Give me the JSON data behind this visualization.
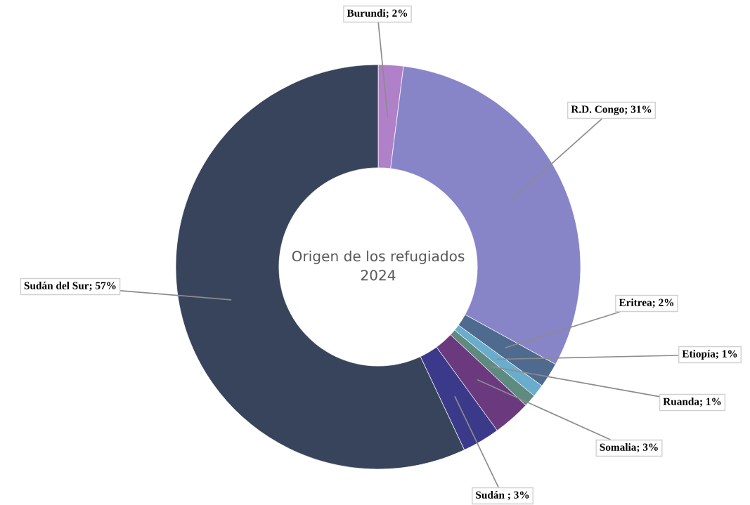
{
  "chart_data": {
    "type": "donut",
    "title": "Origen de los refugiados\n2024",
    "categories": [
      "Burundi",
      "R.D. Congo",
      "Eritrea",
      "Etiopía",
      "Ruanda",
      "Somalia",
      "Sudán ",
      "Sudán del Sur"
    ],
    "values": [
      2,
      31,
      2,
      1,
      1,
      3,
      3,
      57
    ],
    "value_labels": [
      "2%",
      "31%",
      "2%",
      "1%",
      "1%",
      "3%",
      "3%",
      "57%"
    ],
    "colors": [
      "#b080c8",
      "#8884c8",
      "#4f6a8f",
      "#6aaccc",
      "#5f8a80",
      "#6b3a7e",
      "#3b3a8a",
      "#38445c"
    ]
  }
}
